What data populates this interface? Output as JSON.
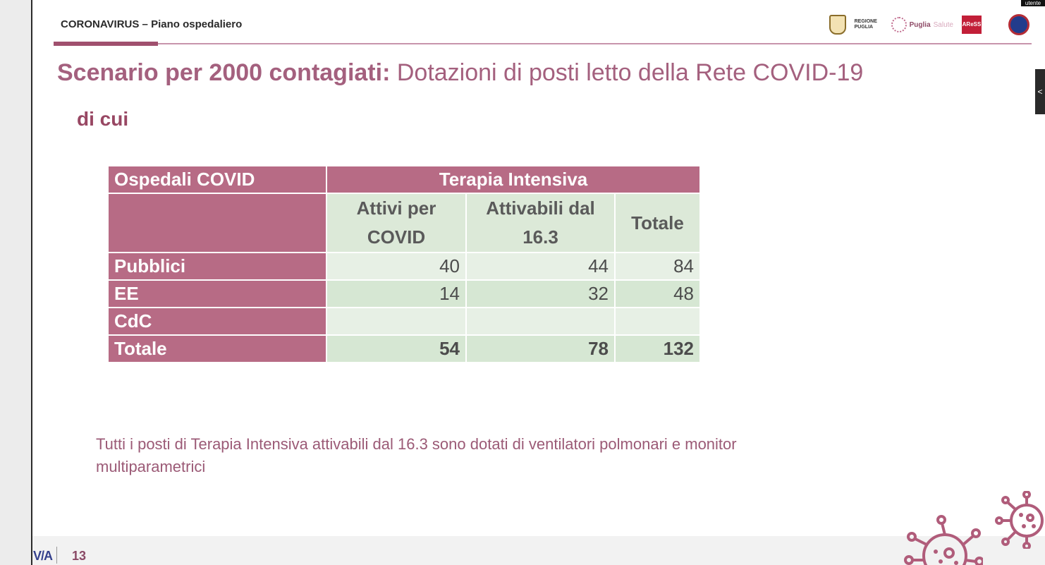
{
  "header": {
    "label": "CORONAVIRUS – Piano ospedaliero",
    "corner_label": "utente",
    "logos": {
      "regione": "REGIONE PUGLIA",
      "puglia_bold": "Puglia",
      "puglia_light": "Salute",
      "ares": "AReSS"
    }
  },
  "title": {
    "bold": "Scenario per 2000 contagiati:",
    "rest": "Dotazioni di posti letto della Rete COVID-19"
  },
  "subtitle": "di cui",
  "table": {
    "col_header": "Ospedali COVID",
    "group_header": "Terapia Intensiva",
    "sub_headers": [
      "Attivi per COVID",
      "Attivabili dal 16.3",
      "Totale"
    ],
    "rows": [
      {
        "label": "Pubblici",
        "values": [
          "40",
          "44",
          "84"
        ]
      },
      {
        "label": "EE",
        "values": [
          "14",
          "32",
          "48"
        ]
      },
      {
        "label": "CdC",
        "values": [
          "",
          "",
          ""
        ]
      },
      {
        "label": "Totale",
        "values": [
          "54",
          "78",
          "132"
        ]
      }
    ]
  },
  "note": "Tutti i posti di Terapia Intensiva attivabili dal 16.3 sono dotati di ventilatori polmonari e monitor multiparametrici",
  "footer": {
    "logo": "V/A",
    "page_number": "13"
  },
  "colors": {
    "accent": "#a4607e",
    "table_header": "#b76b85",
    "table_cell": "#dce9d8"
  }
}
